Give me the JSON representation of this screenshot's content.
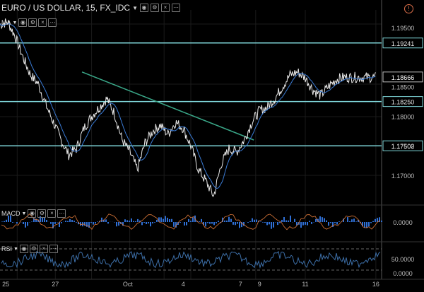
{
  "header": {
    "title": "EURO / US DOLLAR, 15, FX_IDC",
    "alert_icon": "alert-circle-icon"
  },
  "panes": {
    "main_label": "MA",
    "macd_label": "MACD",
    "rsi_label": "RSI"
  },
  "colors": {
    "background": "#000000",
    "price": "#e8e8e8",
    "ma": "#3a7bd5",
    "level_lines": "#7fd6d9",
    "trendline": "#3aa889",
    "macd_hist": "#2f6fd4",
    "macd_signal": "#e07a3a",
    "rsi_line": "#3d6fa8"
  },
  "chart_data": [
    {
      "type": "line",
      "title": "",
      "xlabel": "",
      "ylabel": "",
      "x_ticks": [
        "25",
        "27",
        "Oct",
        "4",
        "7",
        "9",
        "11",
        "16"
      ],
      "y_ticks": [
        "1.19500",
        "1.18500",
        "1.18000",
        "1.17500",
        "1.17000"
      ],
      "ylim": [
        1.165,
        1.198
      ],
      "horizontal_levels": [
        {
          "label": "1.19241",
          "value": 1.19241
        },
        {
          "label": "1.18250",
          "value": 1.1825
        },
        {
          "label": "1.17502",
          "value": 1.17502
        }
      ],
      "last_price": {
        "label": "1.18666",
        "value": 1.18666
      },
      "trendline": {
        "from": [
          0.215,
          1.1875
        ],
        "to": [
          0.665,
          1.176
        ]
      },
      "series": [
        {
          "values_x": [
            0,
            0.02,
            0.04,
            0.06,
            0.08,
            0.1,
            0.12,
            0.14,
            0.16,
            0.18,
            0.2,
            0.22,
            0.24,
            0.26,
            0.28,
            0.3,
            0.32,
            0.34,
            0.36,
            0.38,
            0.4,
            0.42,
            0.44,
            0.46,
            0.48,
            0.5,
            0.52,
            0.54,
            0.56,
            0.58,
            0.6,
            0.62,
            0.64,
            0.66,
            0.68,
            0.7,
            0.72,
            0.74,
            0.76,
            0.78,
            0.8,
            0.82,
            0.84,
            0.86,
            0.88,
            0.9,
            0.92,
            0.94,
            0.96,
            0.98,
            1.0
          ],
          "values": [
            1.1955,
            1.196,
            1.1935,
            1.19,
            1.187,
            1.1855,
            1.182,
            1.179,
            1.176,
            1.1735,
            1.1745,
            1.178,
            1.18,
            1.1815,
            1.183,
            1.1805,
            1.176,
            1.174,
            1.171,
            1.1755,
            1.1775,
            1.1785,
            1.177,
            1.179,
            1.178,
            1.175,
            1.171,
            1.169,
            1.1665,
            1.172,
            1.1745,
            1.174,
            1.176,
            1.179,
            1.181,
            1.1815,
            1.183,
            1.185,
            1.187,
            1.1875,
            1.1865,
            1.1845,
            1.1835,
            1.185,
            1.1862,
            1.1866,
            1.1866,
            1.1866,
            1.1866,
            1.1866,
            1.1866
          ]
        }
      ]
    }
  ]
}
